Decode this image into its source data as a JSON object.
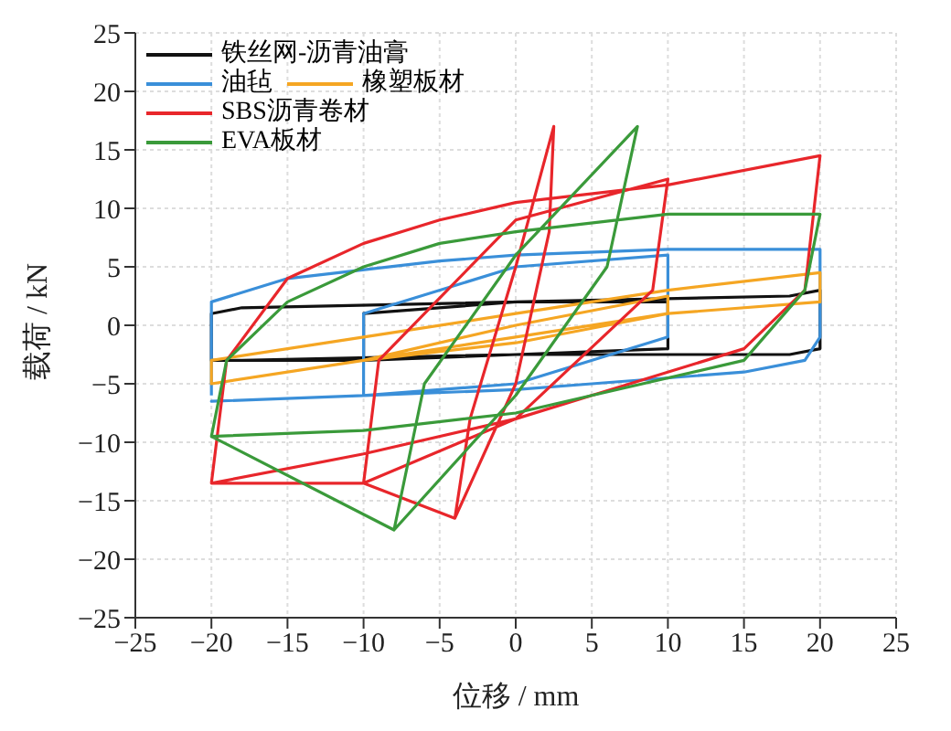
{
  "chart_data": {
    "type": "line",
    "xlabel": "位移 / mm",
    "ylabel": "载荷 / kN",
    "xlim": [
      -25,
      25
    ],
    "ylim": [
      -25,
      25
    ],
    "xticks": [
      -25,
      -20,
      -15,
      -10,
      -5,
      0,
      5,
      10,
      15,
      20,
      25
    ],
    "yticks": [
      -25,
      -20,
      -15,
      -10,
      -5,
      0,
      5,
      10,
      15,
      20,
      25
    ],
    "grid": true,
    "legend": "top left",
    "marker": "none",
    "line_style": "solid",
    "series": [
      {
        "name": "铁丝网-沥青油膏",
        "color": "#111111",
        "x": [
          -20,
          -20,
          -18,
          0,
          18,
          20,
          20,
          18,
          0,
          -18,
          -20,
          -10,
          -10,
          0,
          10,
          10,
          0,
          -10
        ],
        "values": [
          -3,
          1,
          1.5,
          2,
          2.5,
          3,
          -2,
          -2.5,
          -2.5,
          -3,
          -3,
          -3,
          1,
          2,
          2,
          -2,
          -2.5,
          -3
        ]
      },
      {
        "name": "油毡",
        "color": "#3a8fd9",
        "x": [
          -20,
          -20,
          -15,
          -5,
          0,
          10,
          20,
          20,
          19,
          15,
          5,
          0,
          -10,
          -20,
          -10,
          -10,
          0,
          10,
          10,
          0,
          -10
        ],
        "values": [
          -6,
          2,
          4,
          5.5,
          6,
          6.5,
          6.5,
          -1,
          -3,
          -4,
          -5,
          -5.5,
          -6,
          -6.5,
          -6,
          1,
          5,
          6,
          -1,
          -5,
          -6
        ]
      },
      {
        "name": "橡塑板材",
        "color": "#f5a623",
        "x": [
          -20,
          -20,
          -10,
          0,
          10,
          20,
          20,
          10,
          0,
          -10,
          -20,
          -10,
          0,
          10,
          10,
          0,
          -10
        ],
        "values": [
          -5,
          -3,
          -1,
          1,
          3,
          4.5,
          2,
          1,
          -1,
          -3,
          -5,
          -3,
          0,
          2.5,
          1,
          -1.5,
          -3
        ]
      },
      {
        "name": "SBS沥青卷材",
        "color": "#e8262b",
        "x": [
          -20,
          -19,
          -15,
          -10,
          -5,
          0,
          10,
          20,
          20,
          19,
          15,
          5,
          0,
          -10,
          -20,
          -10,
          -9,
          0,
          10,
          10,
          9,
          0,
          -10,
          -4,
          -3,
          0,
          2.5,
          2.2,
          0,
          -4
        ],
        "values": [
          -13.5,
          -3,
          4,
          7,
          9,
          10.5,
          12,
          14.5,
          14.5,
          3,
          -2,
          -6,
          -8,
          -11,
          -13.5,
          -13.5,
          -3,
          9,
          12.5,
          12.5,
          3,
          -8,
          -13.5,
          -16.5,
          -8,
          5,
          17,
          8,
          -5,
          -16.5
        ]
      },
      {
        "name": "EVA板材",
        "color": "#3a9a3a",
        "x": [
          -20,
          -19,
          -15,
          -10,
          -5,
          0,
          10,
          20,
          20,
          19,
          15,
          5,
          0,
          -10,
          -20,
          -8,
          -6,
          0,
          8,
          6,
          0,
          -8
        ],
        "values": [
          -9.5,
          -3,
          2,
          5,
          7,
          8,
          9.5,
          9.5,
          9.5,
          3,
          -3,
          -6,
          -7.5,
          -9,
          -9.5,
          -17.5,
          -5,
          6,
          17,
          5,
          -6,
          -17.5
        ]
      }
    ]
  }
}
